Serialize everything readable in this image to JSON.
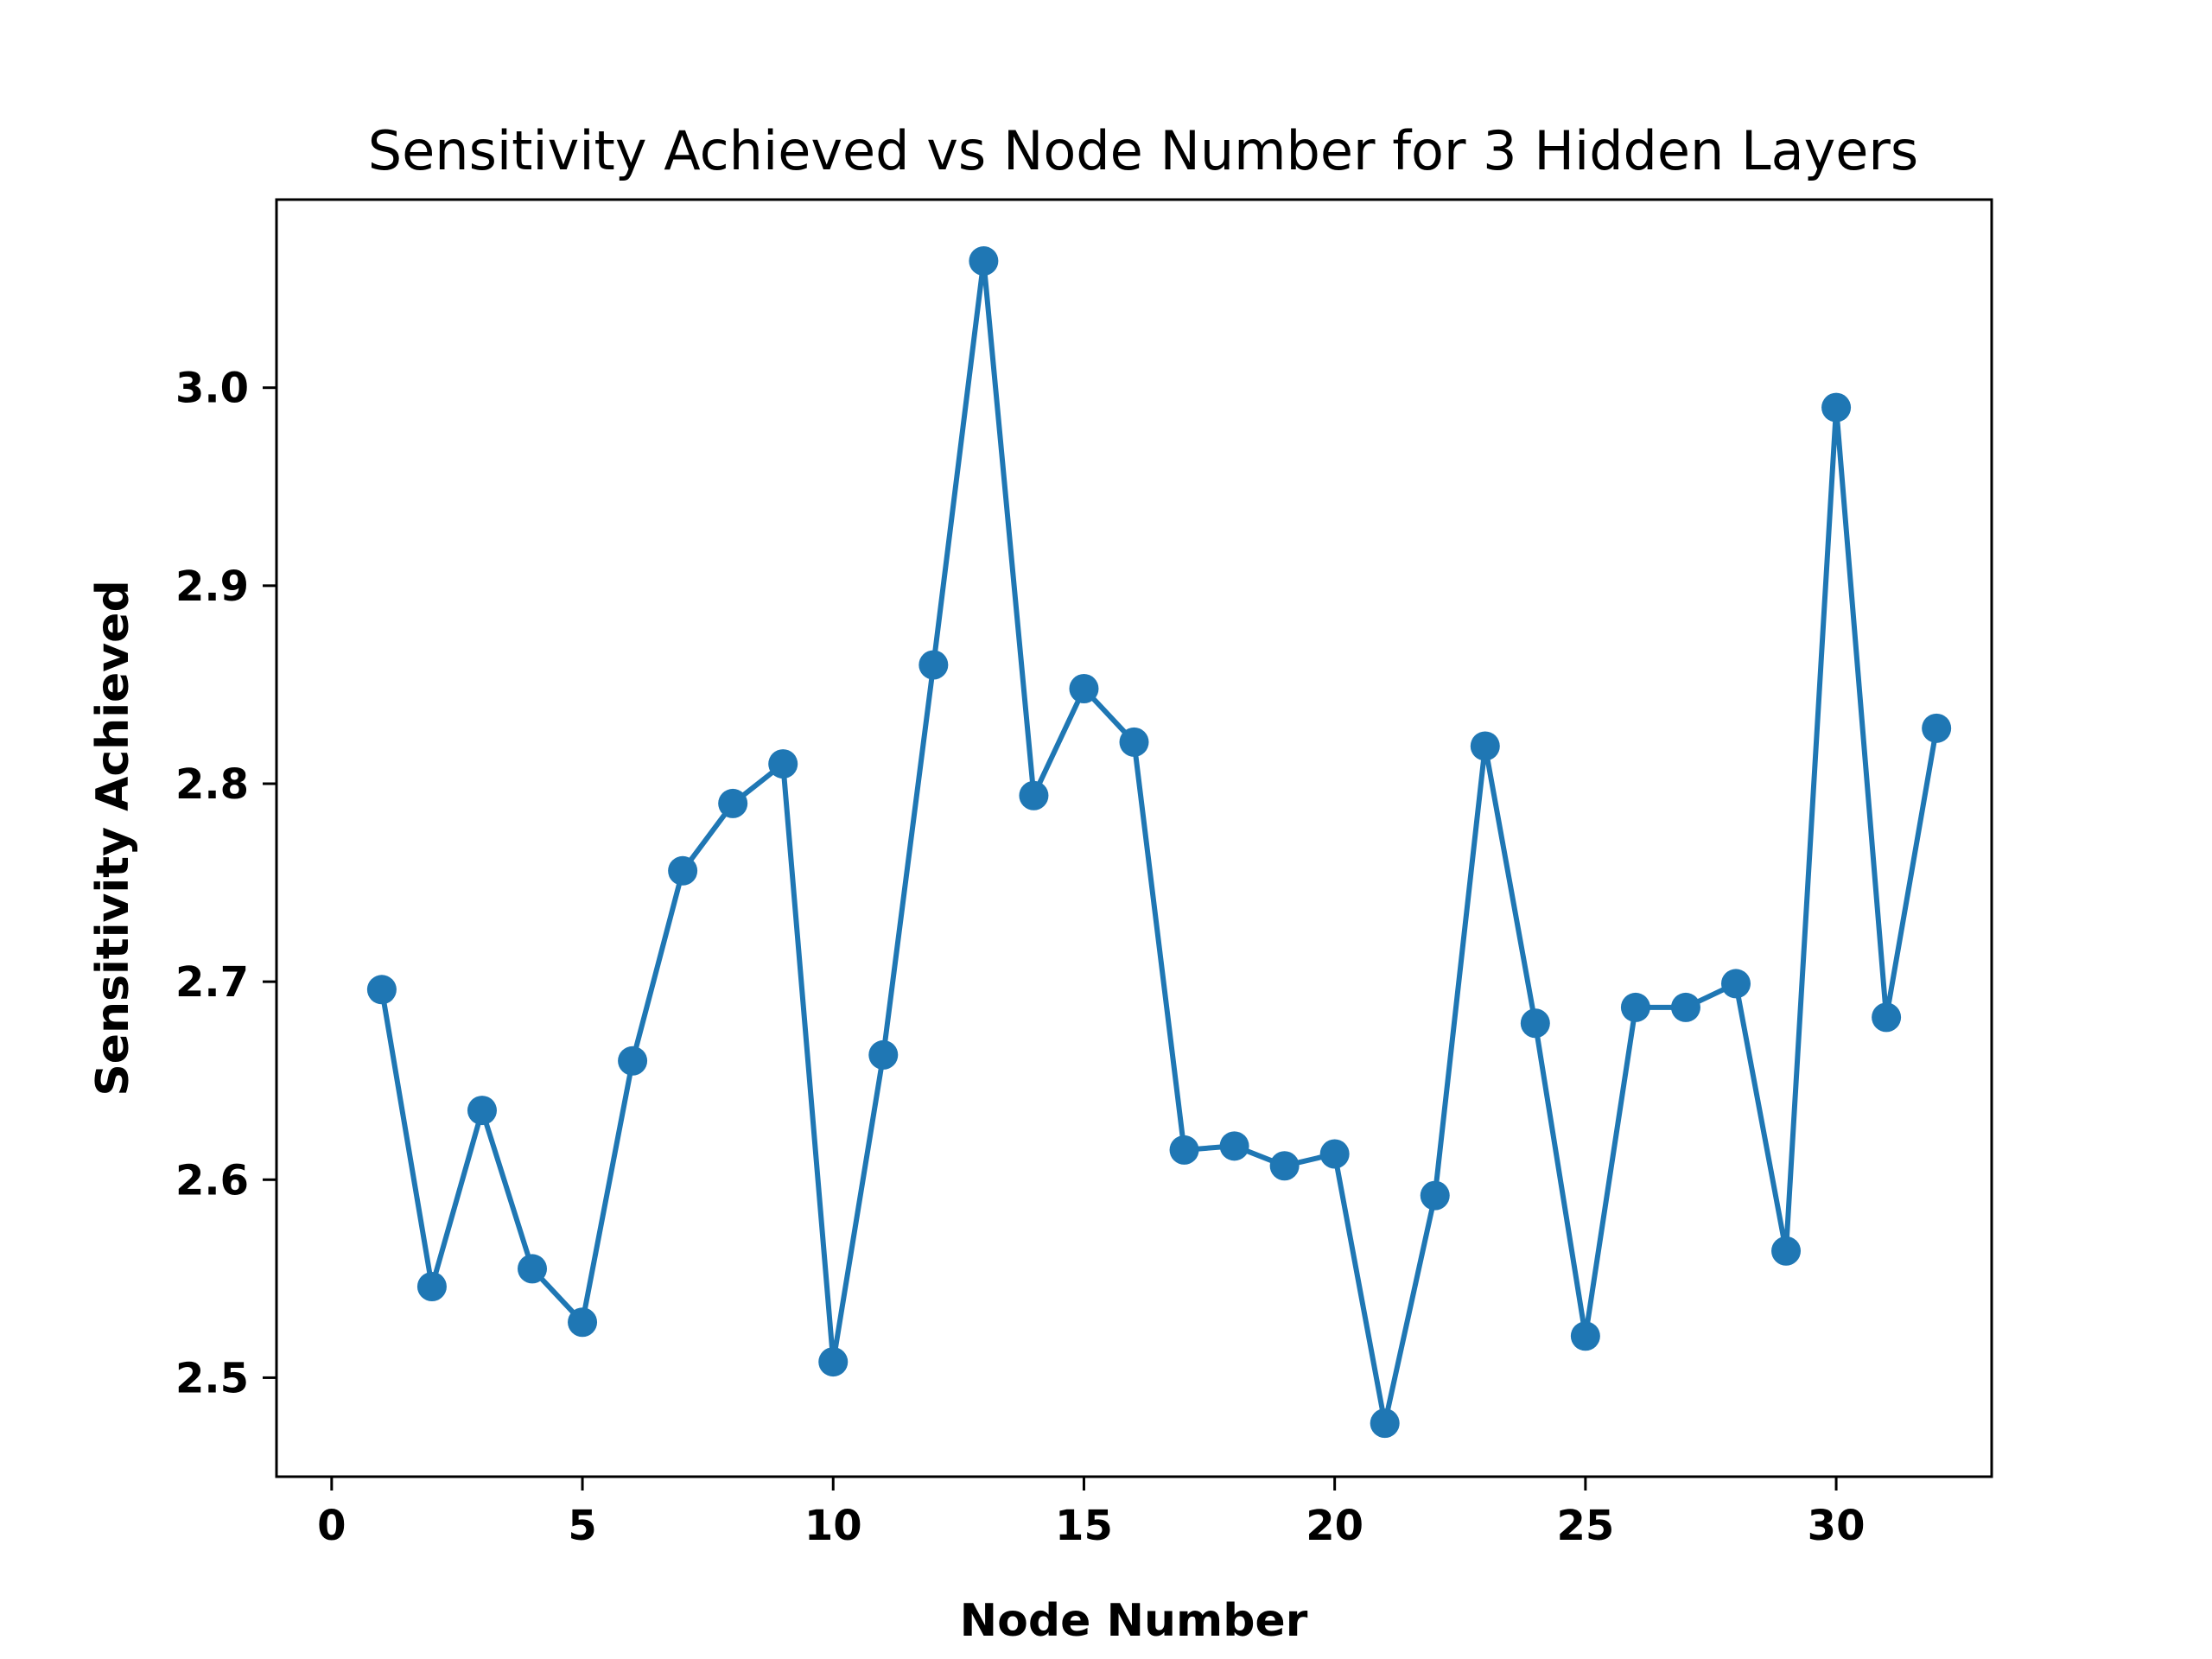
{
  "chart_data": {
    "type": "line",
    "title": "Sensitivity Achieved vs Node Number for 3 Hidden Layers",
    "xlabel": "Node Number",
    "ylabel": "Sensitivity Achieved",
    "xlim": [
      -1.1,
      33.1
    ],
    "ylim": [
      2.45,
      3.095
    ],
    "xticks": [
      0,
      5,
      10,
      15,
      20,
      25,
      30
    ],
    "yticks": [
      2.5,
      2.6,
      2.7,
      2.8,
      2.9,
      3.0
    ],
    "xtick_labels": [
      "0",
      "5",
      "10",
      "15",
      "20",
      "25",
      "30"
    ],
    "ytick_labels": [
      "2.5",
      "2.6",
      "2.7",
      "2.8",
      "2.9",
      "3.0"
    ],
    "grid": false,
    "color": "#1f77b4",
    "marker": "circle",
    "series": [
      {
        "x": [
          1,
          2,
          3,
          4,
          5,
          6,
          7,
          8,
          9,
          10,
          11,
          12,
          13,
          14,
          15,
          16,
          17,
          18,
          19,
          20,
          21,
          22,
          23,
          24,
          25,
          26,
          27,
          28,
          29,
          30,
          31,
          32
        ],
        "y": [
          2.696,
          2.546,
          2.635,
          2.555,
          2.528,
          2.66,
          2.756,
          2.79,
          2.81,
          2.508,
          2.663,
          2.86,
          3.064,
          2.794,
          2.848,
          2.821,
          2.615,
          2.617,
          2.607,
          2.613,
          2.477,
          2.592,
          2.819,
          2.679,
          2.521,
          2.687,
          2.687,
          2.699,
          2.564,
          2.99,
          2.682,
          2.828
        ]
      }
    ]
  }
}
